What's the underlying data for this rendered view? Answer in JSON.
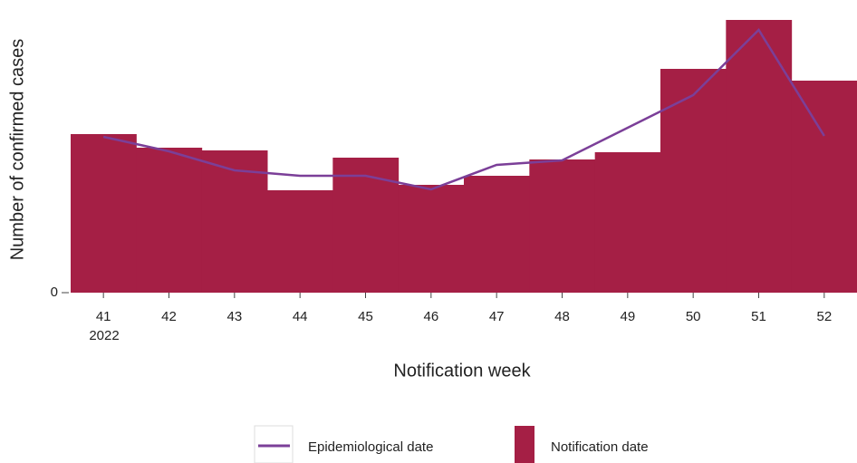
{
  "chart_data": {
    "type": "bar",
    "y_label": "Number of confirmed cases",
    "x_label": "Notification week",
    "x_sublabel": "2022",
    "categories": [
      "41",
      "42",
      "43",
      "44",
      "45",
      "46",
      "47",
      "48",
      "49",
      "50",
      "51",
      "52"
    ],
    "series": [
      {
        "name": "Notification date",
        "type": "bar",
        "color": "#a51f45",
        "values": [
          175,
          160,
          157,
          113,
          149,
          119,
          129,
          147,
          155,
          247,
          301,
          234
        ]
      },
      {
        "name": "Epidemiological date",
        "type": "line",
        "color": "#7b3f98",
        "values": [
          172,
          156,
          135,
          129,
          129,
          114,
          141,
          146,
          182,
          218,
          290,
          173
        ]
      }
    ],
    "ylim": [
      0,
      301
    ],
    "yticks": [
      0
    ],
    "grid": false
  }
}
